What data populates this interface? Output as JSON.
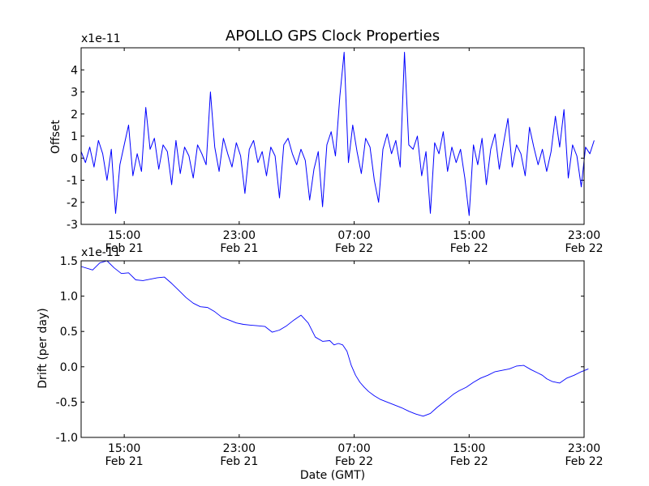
{
  "chart_data": [
    {
      "type": "line",
      "title": "APOLLO GPS Clock Properties",
      "ylabel": "Offset",
      "xlabel": "",
      "scale_label": "x1e-11",
      "ylim": [
        -3,
        5
      ],
      "xlim": [
        0,
        35
      ],
      "yticks": [
        -3,
        -2,
        -1,
        0,
        1,
        2,
        3,
        4
      ],
      "ytick_labels": [
        "-3",
        "-2",
        "-1",
        "0",
        "1",
        "2",
        "3",
        "4"
      ],
      "xticks": [
        {
          "x": 3,
          "time": "15:00",
          "date": "Feb 21"
        },
        {
          "x": 11,
          "time": "23:00",
          "date": "Feb 21"
        },
        {
          "x": 19,
          "time": "07:00",
          "date": "Feb 22"
        },
        {
          "x": 27,
          "time": "15:00",
          "date": "Feb 22"
        },
        {
          "x": 35,
          "time": "23:00",
          "date": "Feb 22"
        }
      ],
      "line_color": "#0000ff",
      "series": [
        {
          "name": "Offset",
          "x": [
            0,
            0.3,
            0.6,
            0.9,
            1.2,
            1.5,
            1.8,
            2.1,
            2.4,
            2.7,
            3.0,
            3.3,
            3.6,
            3.9,
            4.2,
            4.5,
            4.8,
            5.1,
            5.4,
            5.7,
            6.0,
            6.3,
            6.6,
            6.9,
            7.2,
            7.5,
            7.8,
            8.1,
            8.4,
            8.7,
            9.0,
            9.3,
            9.6,
            9.9,
            10.2,
            10.5,
            10.8,
            11.1,
            11.4,
            11.7,
            12.0,
            12.3,
            12.6,
            12.9,
            13.2,
            13.5,
            13.8,
            14.1,
            14.4,
            14.7,
            15.0,
            15.3,
            15.6,
            15.9,
            16.2,
            16.5,
            16.8,
            17.1,
            17.4,
            17.7,
            18.0,
            18.3,
            18.6,
            18.9,
            19.2,
            19.5,
            19.8,
            20.1,
            20.4,
            20.7,
            21.0,
            21.3,
            21.6,
            21.9,
            22.2,
            22.5,
            22.8,
            23.1,
            23.4,
            23.7,
            24.0,
            24.3,
            24.6,
            24.9,
            25.2,
            25.5,
            25.8,
            26.1,
            26.4,
            26.7,
            27.0,
            27.3,
            27.6,
            27.9,
            28.2,
            28.5,
            28.8,
            29.1,
            29.4,
            29.7,
            30.0,
            30.3,
            30.6,
            30.9,
            31.2,
            31.5,
            31.8,
            32.1,
            32.4,
            32.7,
            33.0,
            33.3,
            33.6,
            33.9,
            34.2,
            34.5,
            34.8,
            35.1,
            35.4,
            35.7
          ],
          "values": [
            0.3,
            -0.2,
            0.5,
            -0.4,
            0.8,
            0.2,
            -1.0,
            0.4,
            -2.5,
            -0.3,
            0.6,
            1.5,
            -0.8,
            0.2,
            -0.6,
            2.3,
            0.4,
            0.9,
            -0.5,
            0.6,
            0.3,
            -1.2,
            0.8,
            -0.7,
            0.5,
            0.1,
            -0.9,
            0.6,
            0.2,
            -0.3,
            3.0,
            0.5,
            -0.6,
            0.9,
            0.2,
            -0.4,
            0.7,
            0.1,
            -1.6,
            0.4,
            0.8,
            -0.2,
            0.3,
            -0.8,
            0.5,
            0.1,
            -1.8,
            0.6,
            0.9,
            0.2,
            -0.3,
            0.4,
            -0.1,
            -1.9,
            -0.5,
            0.3,
            -2.2,
            0.6,
            1.2,
            0.1,
            2.8,
            4.8,
            -0.2,
            1.5,
            0.3,
            -0.7,
            0.9,
            0.5,
            -1.0,
            -2.0,
            0.4,
            1.1,
            0.2,
            0.8,
            -0.4,
            4.8,
            0.6,
            0.4,
            1.0,
            -0.8,
            0.3,
            -2.5,
            0.7,
            0.2,
            1.2,
            -0.6,
            0.5,
            -0.2,
            0.4,
            -0.9,
            -2.6,
            0.6,
            -0.3,
            0.9,
            -1.2,
            0.4,
            1.1,
            -0.5,
            0.7,
            1.8,
            -0.4,
            0.6,
            0.2,
            -0.8,
            1.4,
            0.5,
            -0.3,
            0.4,
            -0.6,
            0.3,
            1.9,
            0.5,
            2.2,
            -0.9,
            0.6,
            0.1,
            -1.3,
            0.5,
            0.2,
            0.8
          ]
        }
      ]
    },
    {
      "type": "line",
      "title": "",
      "ylabel": "Drift (per day)",
      "xlabel": "Date (GMT)",
      "scale_label": "x1e-11",
      "ylim": [
        -1.0,
        1.5
      ],
      "xlim": [
        0,
        35
      ],
      "yticks": [
        -1.0,
        -0.5,
        0.0,
        0.5,
        1.0,
        1.5
      ],
      "ytick_labels": [
        "-1.0",
        "-0.5",
        "0.0",
        "0.5",
        "1.0",
        "1.5"
      ],
      "xticks": [
        {
          "x": 3,
          "time": "15:00",
          "date": "Feb 21"
        },
        {
          "x": 11,
          "time": "23:00",
          "date": "Feb 21"
        },
        {
          "x": 19,
          "time": "07:00",
          "date": "Feb 22"
        },
        {
          "x": 27,
          "time": "15:00",
          "date": "Feb 22"
        },
        {
          "x": 35,
          "time": "23:00",
          "date": "Feb 22"
        }
      ],
      "line_color": "#0000ff",
      "series": [
        {
          "name": "Drift",
          "x": [
            0,
            0.8,
            1.3,
            1.8,
            2.3,
            2.8,
            3.3,
            3.8,
            4.3,
            4.8,
            5.3,
            5.8,
            6.3,
            6.8,
            7.3,
            7.8,
            8.3,
            8.8,
            9.3,
            9.8,
            10.3,
            10.8,
            11.3,
            11.8,
            12.3,
            12.8,
            13.3,
            13.8,
            14.3,
            14.8,
            15.3,
            15.8,
            16.3,
            16.8,
            17.3,
            17.6,
            17.9,
            18.2,
            18.5,
            18.8,
            19.1,
            19.4,
            19.7,
            20.0,
            20.4,
            20.8,
            21.3,
            21.8,
            22.3,
            22.8,
            23.3,
            23.8,
            24.3,
            24.8,
            25.3,
            25.6,
            25.9,
            26.3,
            26.8,
            27.3,
            27.8,
            28.3,
            28.8,
            29.3,
            29.8,
            30.3,
            30.8,
            31.3,
            31.8,
            32.1,
            32.4,
            32.8,
            33.3,
            33.8,
            34.3,
            34.8,
            35.3
          ],
          "values": [
            1.42,
            1.37,
            1.47,
            1.5,
            1.4,
            1.32,
            1.33,
            1.23,
            1.22,
            1.24,
            1.26,
            1.27,
            1.18,
            1.08,
            0.98,
            0.9,
            0.85,
            0.84,
            0.78,
            0.7,
            0.66,
            0.62,
            0.6,
            0.59,
            0.58,
            0.57,
            0.49,
            0.52,
            0.58,
            0.66,
            0.73,
            0.62,
            0.42,
            0.36,
            0.37,
            0.31,
            0.33,
            0.31,
            0.22,
            0.02,
            -0.12,
            -0.22,
            -0.29,
            -0.35,
            -0.41,
            -0.46,
            -0.5,
            -0.54,
            -0.58,
            -0.63,
            -0.67,
            -0.7,
            -0.66,
            -0.57,
            -0.49,
            -0.44,
            -0.39,
            -0.34,
            -0.29,
            -0.22,
            -0.16,
            -0.12,
            -0.07,
            -0.05,
            -0.03,
            0.01,
            0.02,
            -0.04,
            -0.09,
            -0.12,
            -0.17,
            -0.21,
            -0.23,
            -0.16,
            -0.12,
            -0.07,
            -0.03
          ]
        }
      ]
    }
  ]
}
